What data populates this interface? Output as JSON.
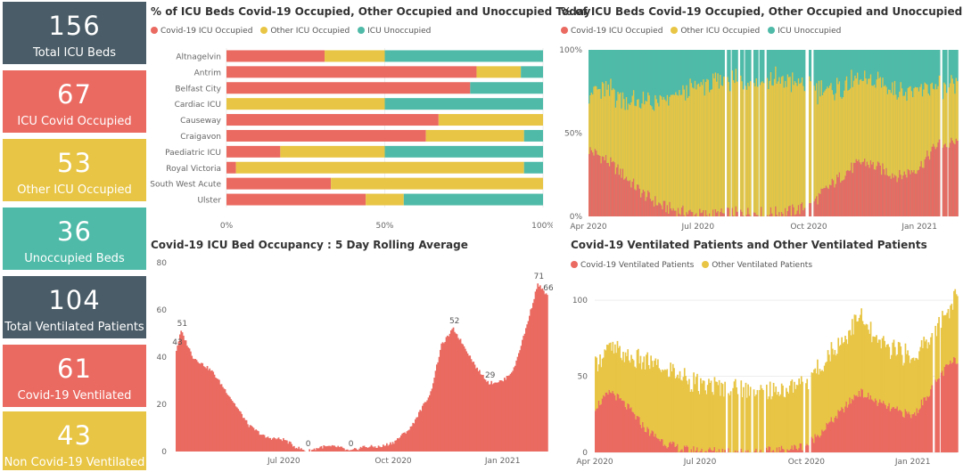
{
  "colors": {
    "covid": "#ea6a61",
    "other": "#e8c544",
    "unoccupied": "#4fbaa8",
    "dark": "#4a5c67"
  },
  "cards": [
    {
      "value": "156",
      "label": "Total ICU Beds",
      "color": "#4a5c67"
    },
    {
      "value": "67",
      "label": "ICU Covid Occupied",
      "color": "#ea6a61"
    },
    {
      "value": "53",
      "label": "Other ICU Occupied",
      "color": "#e8c544"
    },
    {
      "value": "36",
      "label": "Unoccupied Beds",
      "color": "#4fbaa8"
    },
    {
      "value": "104",
      "label": "Total Ventilated Patients",
      "color": "#4a5c67"
    },
    {
      "value": "61",
      "label": "Covid-19 Ventilated",
      "color": "#ea6a61"
    },
    {
      "value": "43",
      "label": "Non Covid-19 Ventilated",
      "color": "#e8c544"
    }
  ],
  "chart_data": [
    {
      "id": "today",
      "type": "bar",
      "orientation": "horizontal-stacked-100",
      "title": "% of ICU Beds Covid-19 Occupied, Other Occupied and Unoccupied Today",
      "legend": [
        "Covid-19 ICU Occupied",
        "Other ICU Occupied",
        "ICU Unoccupied"
      ],
      "categories": [
        "Altnagelvin",
        "Antrim",
        "Belfast City",
        "Cardiac ICU",
        "Causeway",
        "Craigavon",
        "Paediatric ICU",
        "Royal Victoria",
        "South West Acute",
        "Ulster"
      ],
      "series": [
        {
          "name": "Covid-19 ICU Occupied",
          "values": [
            31,
            79,
            77,
            0,
            67,
            63,
            17,
            3,
            33,
            44
          ]
        },
        {
          "name": "Other ICU Occupied",
          "values": [
            19,
            14,
            0,
            50,
            33,
            31,
            33,
            91,
            67,
            12
          ]
        },
        {
          "name": "ICU Unoccupied",
          "values": [
            50,
            7,
            23,
            50,
            0,
            6,
            50,
            6,
            0,
            44
          ]
        }
      ],
      "xticks": [
        "0%",
        "50%",
        "100%"
      ]
    },
    {
      "id": "history",
      "type": "area",
      "orientation": "stacked-100",
      "title": "% of ICU Beds Covid-19 Occupied, Other Occupied and Unoccupied",
      "legend": [
        "Covid-19 ICU Occupied",
        "Other ICU Occupied",
        "ICU Unoccupied"
      ],
      "x": [
        "2020-04-01",
        "2020-04-15",
        "2020-05-01",
        "2020-05-15",
        "2020-06-01",
        "2020-06-15",
        "2020-07-01",
        "2020-07-15",
        "2020-08-01",
        "2020-08-15",
        "2020-09-01",
        "2020-09-15",
        "2020-10-01",
        "2020-10-15",
        "2020-11-01",
        "2020-11-15",
        "2020-12-01",
        "2020-12-15",
        "2021-01-01",
        "2021-01-15",
        "2021-02-01"
      ],
      "series": [
        {
          "name": "Covid-19 ICU Occupied",
          "values": [
            40,
            34,
            24,
            14,
            6,
            3,
            1,
            1,
            2,
            2,
            2,
            3,
            6,
            16,
            27,
            33,
            28,
            24,
            30,
            43,
            44
          ]
        },
        {
          "name": "Other ICU Occupied",
          "values": [
            35,
            42,
            46,
            54,
            62,
            70,
            77,
            78,
            80,
            79,
            80,
            78,
            72,
            58,
            52,
            48,
            52,
            52,
            46,
            35,
            32
          ]
        },
        {
          "name": "ICU Unoccupied",
          "values": [
            25,
            24,
            30,
            32,
            32,
            27,
            22,
            21,
            18,
            19,
            18,
            19,
            22,
            26,
            21,
            19,
            20,
            24,
            24,
            22,
            24
          ]
        }
      ],
      "yticks": [
        "0%",
        "50%",
        "100%"
      ],
      "xticks": [
        "Apr 2020",
        "Jul 2020",
        "Oct 2020",
        "Jan 2021"
      ]
    },
    {
      "id": "rolling",
      "type": "area",
      "title": "Covid-19 ICU Bed Occupancy : 5 Day Rolling Average",
      "x": [
        "2020-04-01",
        "2020-04-05",
        "2020-04-15",
        "2020-05-01",
        "2020-05-15",
        "2020-06-01",
        "2020-06-15",
        "2020-07-01",
        "2020-07-10",
        "2020-07-20",
        "2020-08-01",
        "2020-08-15",
        "2020-08-25",
        "2020-09-05",
        "2020-09-20",
        "2020-10-01",
        "2020-10-15",
        "2020-11-01",
        "2020-11-10",
        "2020-11-20",
        "2020-12-01",
        "2020-12-10",
        "2020-12-20",
        "2021-01-01",
        "2021-01-10",
        "2021-01-20",
        "2021-01-30",
        "2021-02-07"
      ],
      "values": [
        43,
        51,
        40,
        34,
        24,
        11,
        6,
        5,
        2,
        0,
        2,
        2,
        0,
        2,
        2,
        4,
        10,
        25,
        45,
        52,
        43,
        35,
        29,
        30,
        35,
        52,
        71,
        66
      ],
      "data_labels": [
        {
          "x": "2020-04-01",
          "label": "43"
        },
        {
          "x": "2020-04-05",
          "label": "51"
        },
        {
          "x": "2020-07-20",
          "label": "0"
        },
        {
          "x": "2020-08-25",
          "label": "0"
        },
        {
          "x": "2020-11-20",
          "label": "52"
        },
        {
          "x": "2020-12-20",
          "label": "29"
        },
        {
          "x": "2021-01-30",
          "label": "71"
        },
        {
          "x": "2021-02-07",
          "label": "66"
        }
      ],
      "yticks": [
        "0",
        "20",
        "40",
        "60",
        "80"
      ],
      "xticks": [
        "Jul 2020",
        "Oct 2020",
        "Jan 2021"
      ],
      "ylim": [
        0,
        80
      ]
    },
    {
      "id": "ventilated",
      "type": "bar",
      "orientation": "stacked",
      "title": "Covid-19 Ventilated Patients and Other Ventilated Patients",
      "legend": [
        "Covid-19 Ventilated Patients",
        "Other Ventilated Patients"
      ],
      "x": [
        "2020-04-01",
        "2020-04-15",
        "2020-05-01",
        "2020-05-15",
        "2020-06-01",
        "2020-06-15",
        "2020-07-01",
        "2020-07-15",
        "2020-08-01",
        "2020-08-15",
        "2020-09-01",
        "2020-09-15",
        "2020-10-01",
        "2020-10-15",
        "2020-11-01",
        "2020-11-15",
        "2020-12-01",
        "2020-12-15",
        "2021-01-01",
        "2021-01-15",
        "2021-02-01",
        "2021-02-08"
      ],
      "series": [
        {
          "name": "Covid-19 Ventilated Patients",
          "values": [
            30,
            40,
            28,
            15,
            6,
            2,
            1,
            1,
            1,
            1,
            1,
            2,
            5,
            15,
            28,
            40,
            33,
            28,
            24,
            40,
            58,
            61
          ]
        },
        {
          "name": "Other Ventilated Patients",
          "values": [
            30,
            28,
            32,
            45,
            48,
            48,
            42,
            42,
            42,
            40,
            38,
            40,
            42,
            45,
            45,
            50,
            38,
            40,
            38,
            35,
            35,
            43
          ]
        }
      ],
      "yticks": [
        "0",
        "50",
        "100"
      ],
      "xticks": [
        "Apr 2020",
        "Jul 2020",
        "Oct 2020",
        "Jan 2021"
      ],
      "ylim": [
        0,
        110
      ]
    }
  ]
}
